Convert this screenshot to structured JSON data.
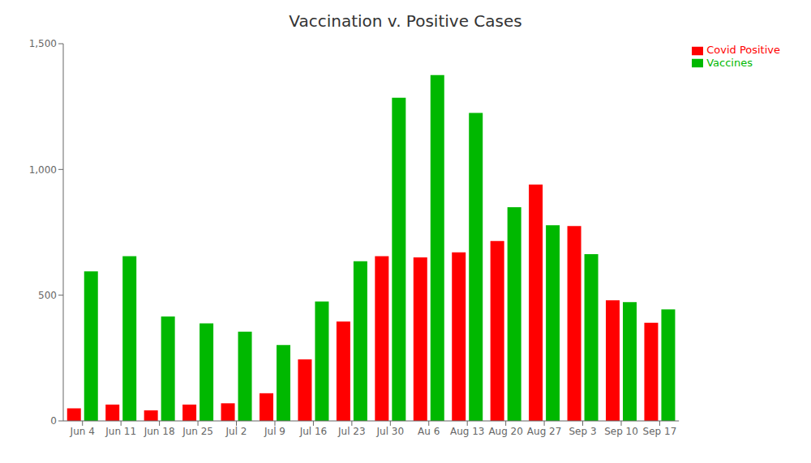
{
  "chart_data": {
    "type": "bar",
    "title": "Vaccination v. Positive Cases",
    "categories": [
      "Jun 4",
      "Jun 11",
      "Jun 18",
      "Jun 25",
      "Jul 2",
      "Jul 9",
      "Jul 16",
      "Jul 23",
      "Jul 30",
      "Au 6",
      "Aug 13",
      "Aug 20",
      "Aug 27",
      "Sep 3",
      "Sep 10",
      "Sep 17"
    ],
    "series": [
      {
        "name": "Covid Positive",
        "color": "#ff0000",
        "values": [
          50,
          65,
          42,
          65,
          70,
          110,
          245,
          395,
          655,
          650,
          670,
          715,
          940,
          775,
          480,
          390
        ]
      },
      {
        "name": "Vaccines",
        "color": "#00b800",
        "values": [
          595,
          655,
          415,
          388,
          355,
          302,
          475,
          635,
          1285,
          1375,
          1225,
          850,
          778,
          663,
          472,
          443
        ]
      }
    ],
    "ylim": [
      0,
      1500
    ],
    "yticks": [
      0,
      500,
      {
        "value": 1000,
        "label": "1,000"
      },
      {
        "value": 1500,
        "label": "1,500"
      }
    ],
    "grid": false,
    "legend": "upper right"
  }
}
